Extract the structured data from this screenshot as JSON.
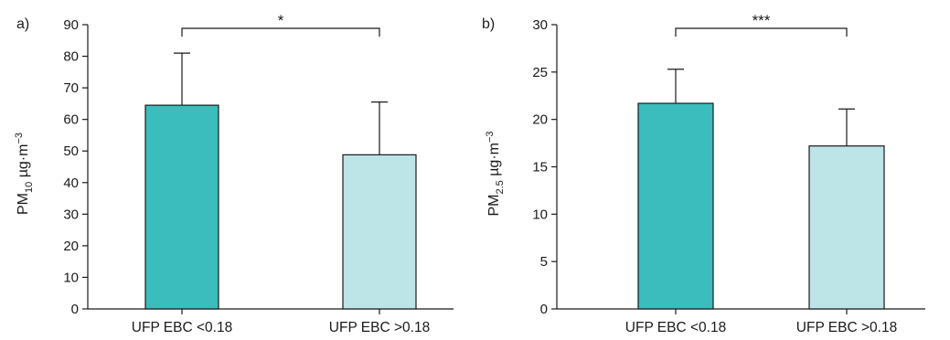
{
  "chart_data": [
    {
      "type": "bar",
      "panel_label": "a)",
      "ylabel": {
        "main": "PM",
        "sub": "10",
        "unit": " µg·m",
        "sup": "−3"
      },
      "ylim": [
        0,
        90
      ],
      "yticks": [
        0,
        10,
        20,
        30,
        40,
        50,
        60,
        70,
        80,
        90
      ],
      "categories": [
        "UFP EBC <0.18",
        "UFP EBC >0.18"
      ],
      "values": [
        64.5,
        48.8
      ],
      "error_upper": [
        81.0,
        65.5
      ],
      "colors": [
        "#3bbcbd",
        "#bde4e6"
      ],
      "significance": "*"
    },
    {
      "type": "bar",
      "panel_label": "b)",
      "ylabel": {
        "main": "PM",
        "sub": "2.5",
        "unit": " µg·m",
        "sup": "−3"
      },
      "ylim": [
        0,
        30
      ],
      "yticks": [
        0,
        5,
        10,
        15,
        20,
        25,
        30
      ],
      "categories": [
        "UFP EBC <0.18",
        "UFP EBC >0.18"
      ],
      "values": [
        21.7,
        17.2
      ],
      "error_upper": [
        25.3,
        21.1
      ],
      "colors": [
        "#3bbcbd",
        "#bde4e6"
      ],
      "significance": "***"
    }
  ]
}
